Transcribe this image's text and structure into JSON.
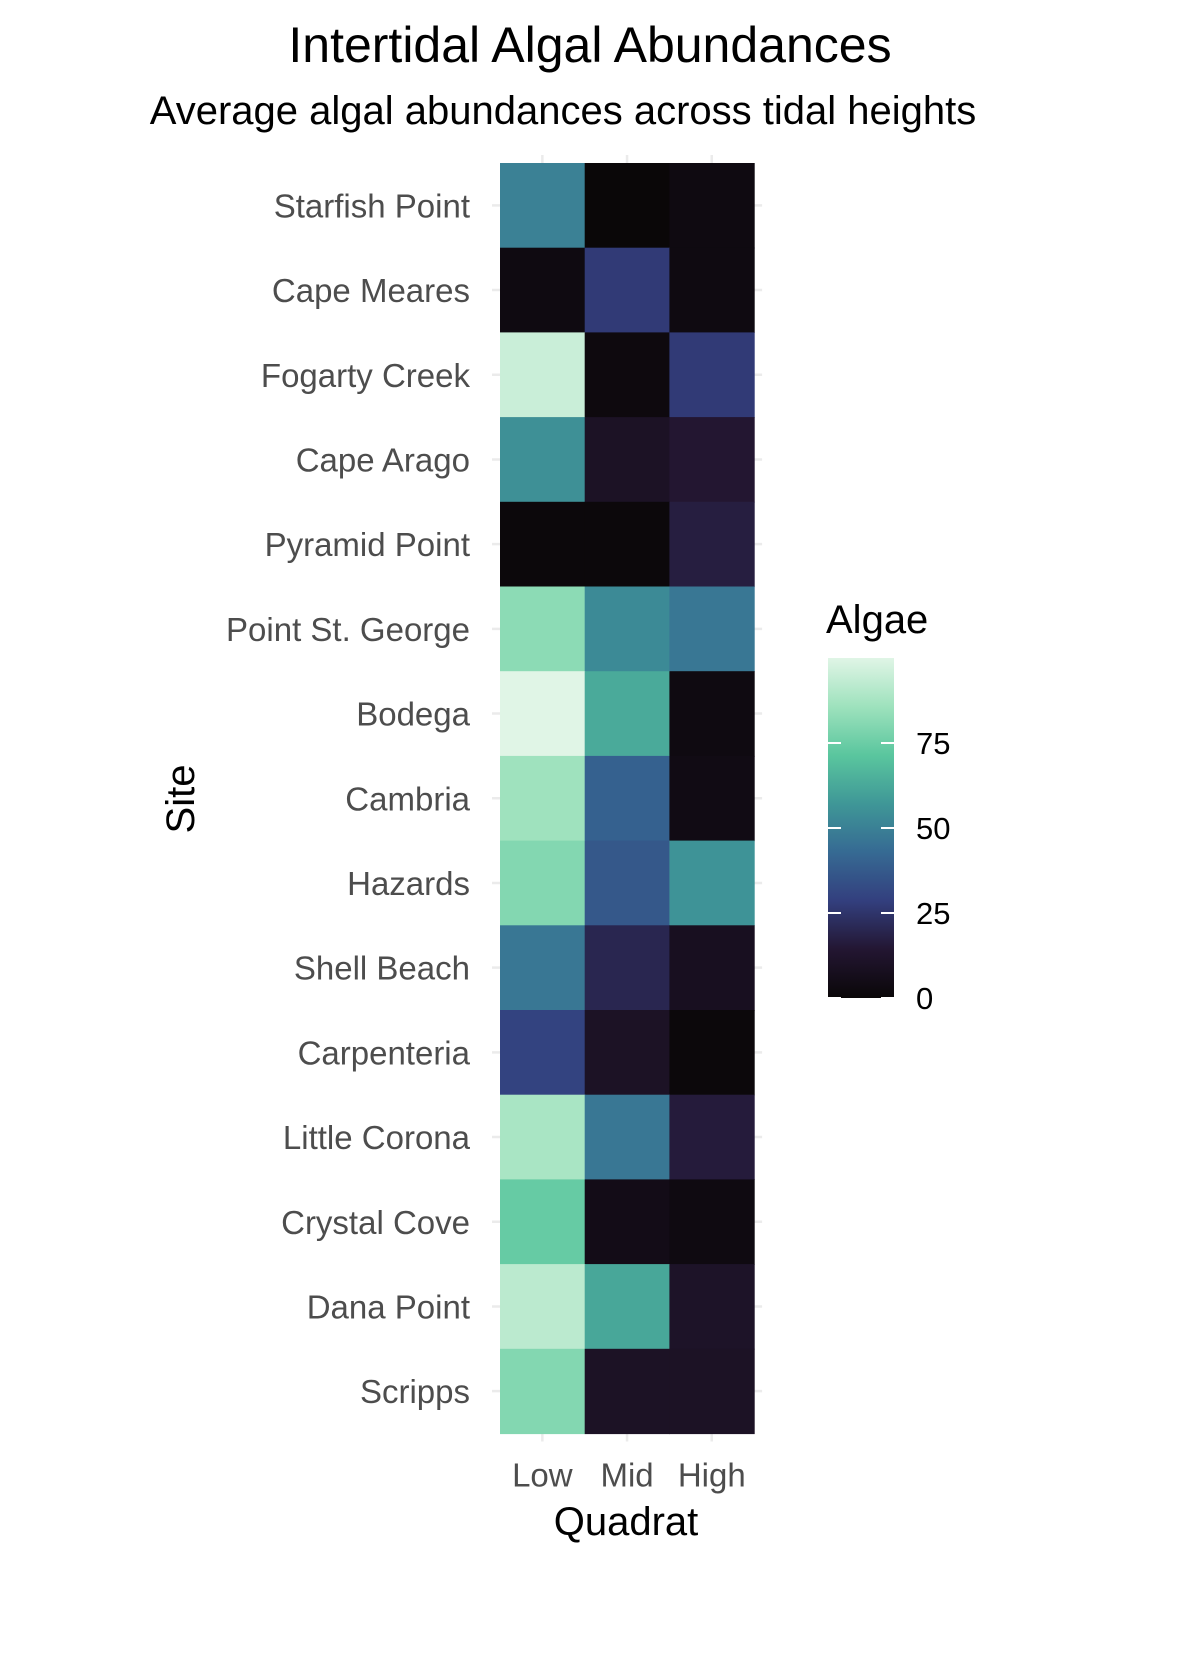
{
  "chart_data": {
    "type": "heatmap",
    "title": "Intertidal Algal Abundances",
    "subtitle": "Average algal abundances across tidal heights",
    "xlabel": "Quadrat",
    "ylabel": "Site",
    "x_categories": [
      "Low",
      "Mid",
      "High"
    ],
    "y_categories": [
      "Starfish Point",
      "Cape Meares",
      "Fogarty Creek",
      "Cape Arago",
      "Pyramid Point",
      "Point St. George",
      "Bodega",
      "Cambria",
      "Hazards",
      "Shell Beach",
      "Carpenteria",
      "Little Corona",
      "Crystal Cove",
      "Dana Point",
      "Scripps"
    ],
    "values": [
      [
        50,
        0,
        3
      ],
      [
        3,
        27,
        3
      ],
      [
        95,
        2,
        27
      ],
      [
        55,
        10,
        14
      ],
      [
        1,
        1,
        17
      ],
      [
        82,
        53,
        47
      ],
      [
        100,
        63,
        3
      ],
      [
        86,
        40,
        4
      ],
      [
        80,
        37,
        56
      ],
      [
        47,
        20,
        8
      ],
      [
        30,
        10,
        1
      ],
      [
        88,
        47,
        16
      ],
      [
        74,
        5,
        3
      ],
      [
        92,
        62,
        11
      ],
      [
        80,
        10,
        10
      ]
    ],
    "legend": {
      "title": "Algae",
      "ticks": [
        0,
        25,
        50,
        75
      ],
      "range": [
        0,
        100
      ],
      "position": "right"
    },
    "colorscale": [
      "#0a0708",
      "#231632",
      "#333f7e",
      "#366a93",
      "#3f9797",
      "#5ac69e",
      "#9ee2bd",
      "#e0f5e6"
    ],
    "grid": true
  }
}
